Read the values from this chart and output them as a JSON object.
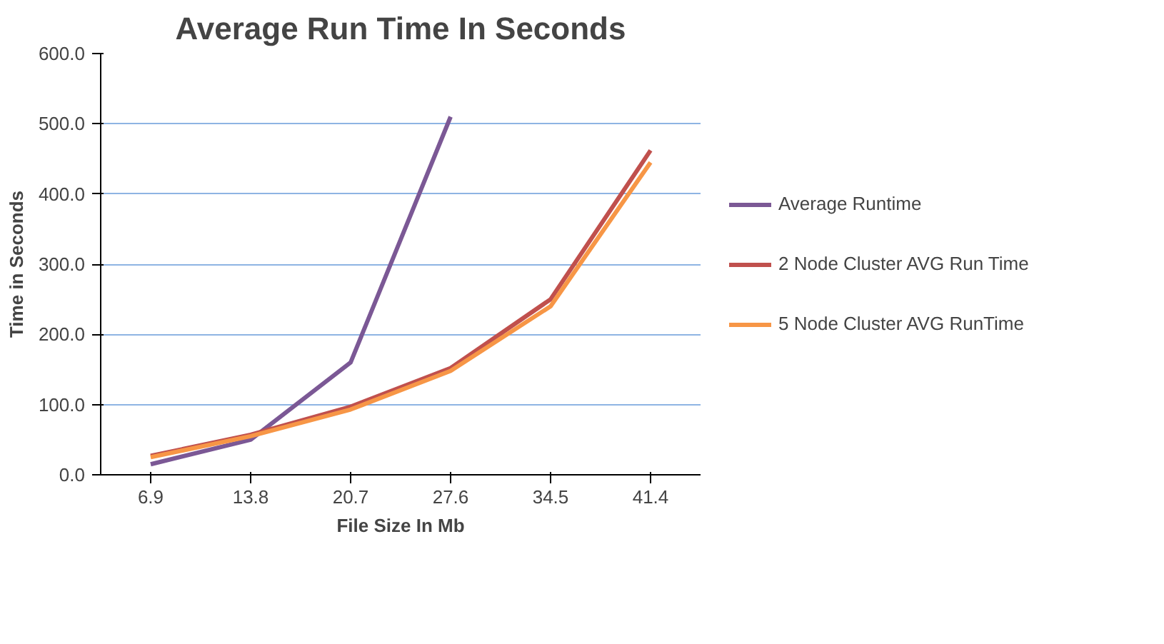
{
  "chart_data": {
    "type": "line",
    "title": "Average Run Time In Seconds",
    "xlabel": "File Size In Mb",
    "ylabel": "Time in Seconds",
    "categories": [
      "6.9",
      "13.8",
      "20.7",
      "27.6",
      "34.5",
      "41.4"
    ],
    "series": [
      {
        "name": "Average Runtime",
        "color": "#7b5895",
        "values": [
          15,
          50,
          160,
          510,
          null,
          null
        ]
      },
      {
        "name": "2 Node Cluster AVG Run Time",
        "color": "#c0504d",
        "values": [
          27,
          57,
          97,
          152,
          250,
          462
        ]
      },
      {
        "name": "5 Node Cluster AVG RunTime",
        "color": "#f79646",
        "values": [
          25,
          55,
          93,
          148,
          240,
          445
        ]
      }
    ],
    "ylim": [
      0,
      600
    ],
    "yticks": [
      {
        "value": 0,
        "label": "0.0"
      },
      {
        "value": 100,
        "label": "100.0"
      },
      {
        "value": 200,
        "label": "200.0"
      },
      {
        "value": 300,
        "label": "300.0"
      },
      {
        "value": 400,
        "label": "400.0"
      },
      {
        "value": 500,
        "label": "500.0"
      },
      {
        "value": 600,
        "label": "600.0"
      }
    ],
    "grid": "y",
    "legend": "right",
    "marker": "none",
    "line_style": "solid"
  }
}
